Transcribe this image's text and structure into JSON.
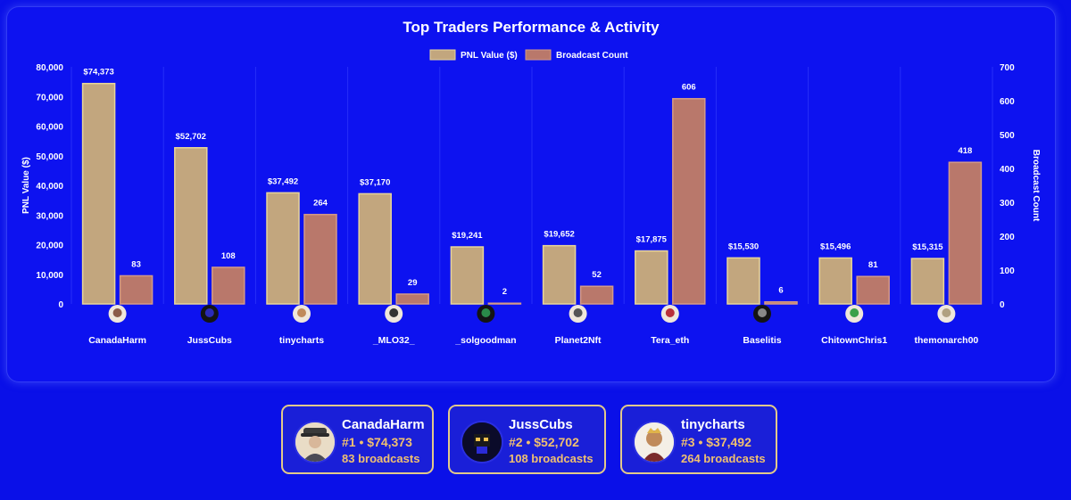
{
  "colors": {
    "background": "#0a10e8",
    "pnl_fill": "#c2a67e",
    "pnl_stroke": "#e8d59a",
    "broadcast_fill": "#b9786b",
    "broadcast_stroke": "#d49a88",
    "card_border": "#e2c98a",
    "card_accent_text": "#f0c070"
  },
  "chart_data": {
    "type": "bar",
    "title": "Top Traders Performance & Activity",
    "legend_position": "top-center",
    "grid": true,
    "categories": [
      "CanadaHarm",
      "JussCubs",
      "tinycharts",
      "_MLO32_",
      "_solgoodman",
      "Planet2Nft",
      "Tera_eth",
      "Baselitis",
      "ChitownChris1",
      "themonarch00"
    ],
    "category_icons": [
      "avatar-canadaharm-icon",
      "avatar-jusscubs-icon",
      "avatar-tinycharts-icon",
      "avatar-mlo32-icon",
      "avatar-solgoodman-icon",
      "avatar-planet2nft-icon",
      "avatar-tera-eth-icon",
      "avatar-baselitis-icon",
      "avatar-chitownchris1-icon",
      "avatar-themonarch00-icon"
    ],
    "series": [
      {
        "name": "PNL Value ($)",
        "axis": "left",
        "values": [
          74373,
          52702,
          37492,
          37170,
          19241,
          19652,
          17875,
          15530,
          15496,
          15315
        ],
        "labels": [
          "$74,373",
          "$52,702",
          "$37,492",
          "$37,170",
          "$19,241",
          "$19,652",
          "$17,875",
          "$15,530",
          "$15,496",
          "$15,315"
        ]
      },
      {
        "name": "Broadcast Count",
        "axis": "right",
        "values": [
          83,
          108,
          264,
          29,
          2,
          52,
          606,
          6,
          81,
          418
        ],
        "labels": [
          "83",
          "108",
          "264",
          "29",
          "2",
          "52",
          "606",
          "6",
          "81",
          "418"
        ]
      }
    ],
    "y_left": {
      "label": "PNL Value ($)",
      "lim": [
        0,
        80000
      ],
      "ticks": [
        0,
        10000,
        20000,
        30000,
        40000,
        50000,
        60000,
        70000,
        80000
      ],
      "tick_labels": [
        "0",
        "10,000",
        "20,000",
        "30,000",
        "40,000",
        "50,000",
        "60,000",
        "70,000",
        "80,000"
      ]
    },
    "y_right": {
      "label": "Broadcast Count",
      "lim": [
        0,
        700
      ],
      "ticks": [
        0,
        100,
        200,
        300,
        400,
        500,
        600,
        700
      ],
      "tick_labels": [
        "0",
        "100",
        "200",
        "300",
        "400",
        "500",
        "600",
        "700"
      ]
    }
  },
  "top_traders": [
    {
      "name": "CanadaHarm",
      "stats": "#1 • $74,373",
      "broadcasts": "83 broadcasts",
      "icon": "avatar-canadaharm-icon"
    },
    {
      "name": "JussCubs",
      "stats": "#2 • $52,702",
      "broadcasts": "108 broadcasts",
      "icon": "avatar-jusscubs-icon"
    },
    {
      "name": "tinycharts",
      "stats": "#3 • $37,492",
      "broadcasts": "264 broadcasts",
      "icon": "avatar-tinycharts-icon"
    }
  ]
}
